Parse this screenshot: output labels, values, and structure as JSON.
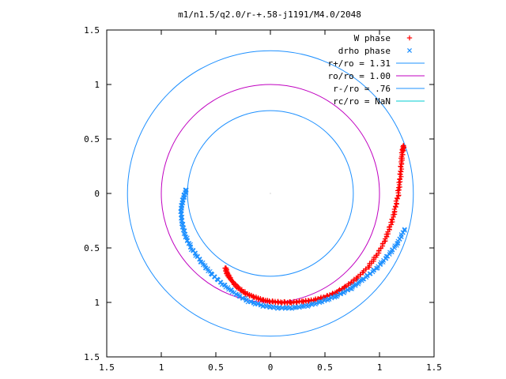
{
  "chart_data": {
    "type": "scatter",
    "title": "m1/n1.5/q2.0/r-+.58-j1191/M4.0/2048",
    "xlabel": "",
    "ylabel": "",
    "xlim": [
      -1.5,
      1.5
    ],
    "ylim": [
      -1.5,
      1.5
    ],
    "grid": false,
    "legend_position": "top-right",
    "x_ticks": [
      -1.5,
      -1,
      -0.5,
      0,
      0.5,
      1,
      1.5
    ],
    "y_ticks": [
      -1.5,
      -1,
      -0.5,
      0,
      0.5,
      1,
      1.5
    ],
    "x_tick_labels": [
      "1.5",
      "1",
      "0.5",
      "0",
      "0.5",
      "1",
      "1.5"
    ],
    "y_tick_labels": [
      "1.5",
      "1",
      "0.5",
      "0",
      "0.5",
      "1",
      "1.5"
    ],
    "series": [
      {
        "name": "W phase",
        "marker": "+",
        "color": "#ff0000",
        "points": [
          [
            -0.41,
            -0.68
          ],
          [
            -0.4,
            -0.73
          ],
          [
            -0.37,
            -0.78
          ],
          [
            -0.33,
            -0.83
          ],
          [
            -0.28,
            -0.88
          ],
          [
            -0.22,
            -0.92
          ],
          [
            -0.15,
            -0.95
          ],
          [
            -0.07,
            -0.98
          ],
          [
            0.0,
            -0.99
          ],
          [
            0.1,
            -1.0
          ],
          [
            0.2,
            -1.0
          ],
          [
            0.3,
            -0.99
          ],
          [
            0.4,
            -0.98
          ],
          [
            0.5,
            -0.95
          ],
          [
            0.6,
            -0.91
          ],
          [
            0.7,
            -0.85
          ],
          [
            0.8,
            -0.77
          ],
          [
            0.9,
            -0.67
          ],
          [
            0.98,
            -0.56
          ],
          [
            1.05,
            -0.43
          ],
          [
            1.1,
            -0.3
          ],
          [
            1.14,
            -0.16
          ],
          [
            1.17,
            -0.01
          ],
          [
            1.19,
            0.14
          ],
          [
            1.2,
            0.28
          ],
          [
            1.21,
            0.38
          ],
          [
            1.22,
            0.44
          ]
        ]
      },
      {
        "name": "drho phase",
        "marker": "x",
        "color": "#1e90ff",
        "points": [
          [
            -0.77,
            0.04
          ],
          [
            -0.8,
            -0.05
          ],
          [
            -0.82,
            -0.15
          ],
          [
            -0.81,
            -0.27
          ],
          [
            -0.78,
            -0.39
          ],
          [
            -0.72,
            -0.51
          ],
          [
            -0.64,
            -0.62
          ],
          [
            -0.55,
            -0.73
          ],
          [
            -0.44,
            -0.83
          ],
          [
            -0.32,
            -0.92
          ],
          [
            -0.2,
            -0.99
          ],
          [
            -0.07,
            -1.03
          ],
          [
            0.06,
            -1.05
          ],
          [
            0.2,
            -1.05
          ],
          [
            0.34,
            -1.03
          ],
          [
            0.48,
            -0.99
          ],
          [
            0.61,
            -0.94
          ],
          [
            0.74,
            -0.87
          ],
          [
            0.86,
            -0.78
          ],
          [
            0.98,
            -0.68
          ],
          [
            1.08,
            -0.57
          ],
          [
            1.17,
            -0.45
          ],
          [
            1.23,
            -0.33
          ]
        ]
      },
      {
        "name": "r+/ro = 1.31",
        "type": "circle",
        "radius": 1.31,
        "color": "#1e90ff"
      },
      {
        "name": "ro/ro = 1.00",
        "type": "circle",
        "radius": 1.0,
        "color": "#c000c0"
      },
      {
        "name": "r-/ro = .76",
        "type": "circle",
        "radius": 0.76,
        "color": "#1e90ff"
      },
      {
        "name": "rc/ro = NaN",
        "type": "circle",
        "radius": null,
        "color": "#00ced1"
      }
    ]
  }
}
